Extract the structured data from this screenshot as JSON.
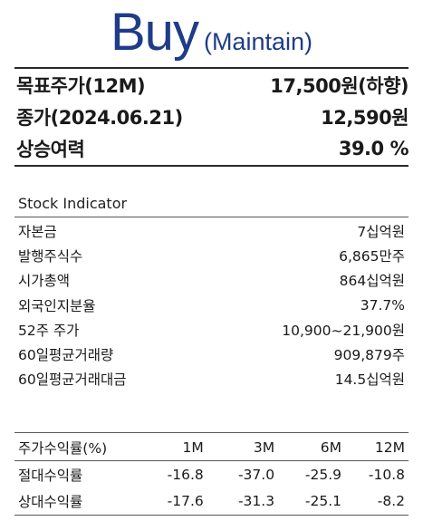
{
  "rating": {
    "main": "Buy",
    "sub": "(Maintain)"
  },
  "key_metrics": [
    {
      "label": "목표주가(12M)",
      "value": "17,500원(하향)"
    },
    {
      "label": "종가(2024.06.21)",
      "value": "12,590원"
    },
    {
      "label": "상승여력",
      "value": "39.0 %"
    }
  ],
  "stock_indicator": {
    "title": "Stock Indicator",
    "rows": [
      {
        "label": "자본금",
        "value": "7십억원"
      },
      {
        "label": "발행주식수",
        "value": "6,865만주"
      },
      {
        "label": "시가총액",
        "value": "864십억원"
      },
      {
        "label": "외국인지분율",
        "value": "37.7%"
      },
      {
        "label": "52주 주가",
        "value": "10,900~21,900원"
      },
      {
        "label": "60일평균거래량",
        "value": "909,879주"
      },
      {
        "label": "60일평균거래대금",
        "value": "14.5십억원"
      }
    ]
  },
  "returns": {
    "header": [
      "주가수익률(%)",
      "1M",
      "3M",
      "6M",
      "12M"
    ],
    "rows": [
      {
        "label": "절대수익률",
        "values": [
          "-16.8",
          "-37.0",
          "-25.9",
          "-10.8"
        ]
      },
      {
        "label": "상대수익률",
        "values": [
          "-17.6",
          "-31.3",
          "-25.1",
          "-8.2"
        ]
      }
    ]
  }
}
